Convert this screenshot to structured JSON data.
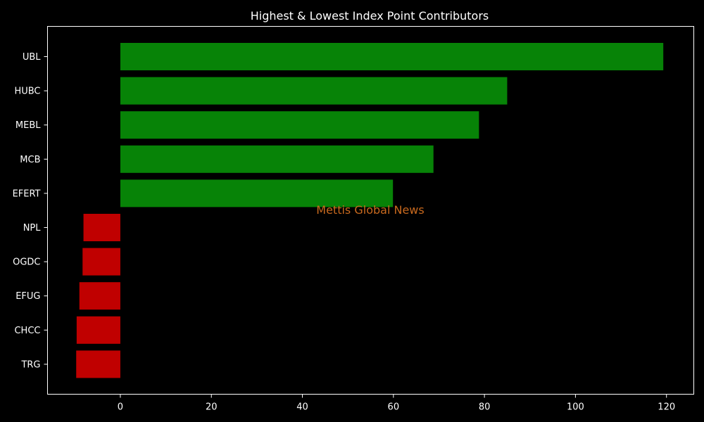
{
  "chart_data": {
    "type": "bar",
    "orientation": "horizontal",
    "title": "Highest & Lowest Index Point Contributors",
    "xlabel": "",
    "ylabel": "",
    "categories": [
      "UBL",
      "HUBC",
      "MEBL",
      "MCB",
      "EFERT",
      "NPL",
      "OGDC",
      "EFUG",
      "CHCC",
      "TRG"
    ],
    "values": [
      119.3,
      85.0,
      78.8,
      68.8,
      59.9,
      -8.1,
      -8.3,
      -9.0,
      -9.6,
      -9.7
    ],
    "xlim": [
      -16,
      126
    ],
    "xticks": [
      0,
      20,
      40,
      60,
      80,
      100,
      120
    ],
    "grid": false,
    "legend": "none",
    "background_color": "#000000",
    "text_color": "#ffffff",
    "positive_color": "#078307",
    "negative_color": "#c00000",
    "watermark": "Mettis Global News",
    "watermark_color": "#c8691e"
  }
}
